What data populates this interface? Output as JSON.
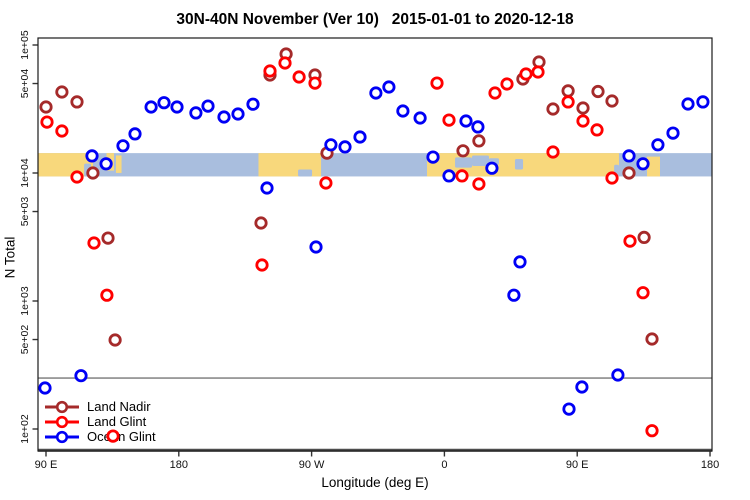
{
  "title": "30N-40N November (Ver 10)   2015-01-01 to 2020-12-18",
  "x_axis": {
    "label": "Longitude (deg E)",
    "ticks": [
      {
        "deg": 90,
        "label": "90 E"
      },
      {
        "deg": 180,
        "label": "180"
      },
      {
        "deg": 270,
        "label": "90 W"
      },
      {
        "deg": 360,
        "label": "0"
      },
      {
        "deg": 450,
        "label": "90 E"
      },
      {
        "deg": 540,
        "label": "180"
      }
    ]
  },
  "y_axis": {
    "label": "N Total",
    "scale": "log10",
    "ticks": [
      {
        "n": 100000,
        "label": "1e+05"
      },
      {
        "n": 50000,
        "label": "5e+04"
      },
      {
        "n": 10000,
        "label": "1e+04"
      },
      {
        "n": 5000,
        "label": "5e+03"
      },
      {
        "n": 1000,
        "label": "1e+03"
      },
      {
        "n": 500,
        "label": "5e+02"
      },
      {
        "n": 100,
        "label": "1e+02"
      }
    ]
  },
  "reference_line": {
    "n": 250,
    "color": "#8C8C8C"
  },
  "map_band": {
    "top_n": 14300,
    "bottom_n": 9400,
    "ocean_color": "#A9BEDE",
    "land_color": "#F8D87C",
    "land_segments": [
      {
        "deg": [
          84.6,
          121.9
        ],
        "frac": [
          0,
          1
        ]
      },
      {
        "deg": [
          131.0,
          136.1
        ],
        "frac": [
          0,
          0.75
        ]
      },
      {
        "deg": [
          137.4,
          141.2
        ],
        "frac": [
          0.1,
          0.85
        ]
      },
      {
        "deg": [
          234.0,
          276.4
        ],
        "frac": [
          0,
          1
        ]
      },
      {
        "deg": [
          348.2,
          478.3
        ],
        "frac": [
          0,
          1
        ]
      },
      {
        "deg": [
          497.3,
          506.1
        ],
        "frac": [
          0.15,
          1
        ]
      }
    ],
    "ocean_cutouts": [
      {
        "deg": [
          115.8,
          120.5
        ],
        "frac": [
          0.45,
          1
        ]
      },
      {
        "deg": [
          260.8,
          270.3
        ],
        "frac": [
          0.7,
          1
        ]
      },
      {
        "deg": [
          367.2,
          378.7
        ],
        "frac": [
          0.18,
          0.62
        ]
      },
      {
        "deg": [
          378.7,
          390.2
        ],
        "frac": [
          0.1,
          0.55
        ]
      },
      {
        "deg": [
          390.2,
          397.0
        ],
        "frac": [
          0.22,
          0.5
        ]
      },
      {
        "deg": [
          407.8,
          413.3
        ],
        "frac": [
          0.25,
          0.7
        ]
      },
      {
        "deg": [
          475.0,
          478.3
        ],
        "frac": [
          0.5,
          1
        ]
      }
    ]
  },
  "chart_data": {
    "type": "scatter",
    "title": "30N-40N November (Ver 10)   2015-01-01 to 2020-12-18",
    "xlabel": "Longitude (deg E)",
    "ylabel": "N Total",
    "yscale": "log10",
    "xlim_deg": [
      84.6,
      541.4
    ],
    "ylim": [
      67,
      113000
    ],
    "x_note": "x is position along axis in degrees east starting at 90E, wrapping 90E-180-90W-0-90E-180 (90 to 540)",
    "series": [
      {
        "id": "land_nadir",
        "name": "Land Nadir",
        "color": "#A52A2A",
        "points": [
          [
            90.0,
            32800
          ],
          [
            100.8,
            42900
          ],
          [
            111.0,
            35900
          ],
          [
            121.8,
            10000
          ],
          [
            132.0,
            3100
          ],
          [
            136.8,
            496
          ],
          [
            235.7,
            4070
          ],
          [
            241.8,
            58300
          ],
          [
            252.7,
            85100
          ],
          [
            272.3,
            58300
          ],
          [
            280.4,
            14300
          ],
          [
            372.6,
            14900
          ],
          [
            383.4,
            17800
          ],
          [
            413.2,
            54200
          ],
          [
            424.1,
            73600
          ],
          [
            433.6,
            31600
          ],
          [
            443.8,
            43800
          ],
          [
            453.9,
            32200
          ],
          [
            464.1,
            43300
          ],
          [
            473.6,
            36500
          ],
          [
            485.1,
            10000
          ],
          [
            495.3,
            3140
          ],
          [
            500.7,
            505
          ]
        ]
      },
      {
        "id": "land_glint",
        "name": "Land Glint",
        "color": "#FF0000",
        "points": [
          [
            90.7,
            25000
          ],
          [
            100.8,
            21300
          ],
          [
            111.0,
            9300
          ],
          [
            122.5,
            2840
          ],
          [
            131.3,
            1110
          ],
          [
            135.4,
            88
          ],
          [
            236.4,
            1910
          ],
          [
            241.8,
            62600
          ],
          [
            252.0,
            72300
          ],
          [
            261.5,
            56200
          ],
          [
            272.3,
            50400
          ],
          [
            279.7,
            8350
          ],
          [
            355.0,
            50400
          ],
          [
            363.1,
            25900
          ],
          [
            371.9,
            9500
          ],
          [
            383.4,
            8200
          ],
          [
            394.3,
            42200
          ],
          [
            402.4,
            49600
          ],
          [
            415.3,
            59300
          ],
          [
            423.4,
            61500
          ],
          [
            433.6,
            14600
          ],
          [
            443.8,
            35900
          ],
          [
            453.9,
            25500
          ],
          [
            463.4,
            21700
          ],
          [
            473.6,
            9140
          ],
          [
            485.8,
            2940
          ],
          [
            494.6,
            1160
          ],
          [
            500.7,
            97
          ]
        ]
      },
      {
        "id": "ocean_glint",
        "name": "Ocean Glint",
        "color": "#0000F5",
        "points": [
          [
            161.2,
            32800
          ],
          [
            170.0,
            35400
          ],
          [
            178.8,
            32800
          ],
          [
            191.6,
            29500
          ],
          [
            199.8,
            33300
          ],
          [
            210.6,
            27400
          ],
          [
            220.1,
            28900
          ],
          [
            230.3,
            34500
          ],
          [
            150.3,
            20200
          ],
          [
            142.2,
            16300
          ],
          [
            121.2,
            13600
          ],
          [
            130.7,
            11800
          ],
          [
            239.8,
            7640
          ],
          [
            273.0,
            2640
          ],
          [
            283.1,
            16600
          ],
          [
            292.6,
            16000
          ],
          [
            302.8,
            19100
          ],
          [
            313.6,
            42200
          ],
          [
            322.4,
            47000
          ],
          [
            331.9,
            30500
          ],
          [
            343.5,
            26900
          ],
          [
            352.3,
            13300
          ],
          [
            363.1,
            9500
          ],
          [
            374.6,
            25500
          ],
          [
            382.7,
            22900
          ],
          [
            392.2,
            10900
          ],
          [
            407.1,
            1110
          ],
          [
            411.2,
            2020
          ],
          [
            89.3,
            209
          ],
          [
            113.7,
            261
          ],
          [
            444.4,
            143
          ],
          [
            453.2,
            213
          ],
          [
            477.6,
            264
          ],
          [
            485.1,
            13600
          ],
          [
            494.6,
            11800
          ],
          [
            504.7,
            16600
          ],
          [
            514.9,
            20500
          ],
          [
            525.1,
            34600
          ],
          [
            535.2,
            35900
          ]
        ]
      }
    ]
  }
}
